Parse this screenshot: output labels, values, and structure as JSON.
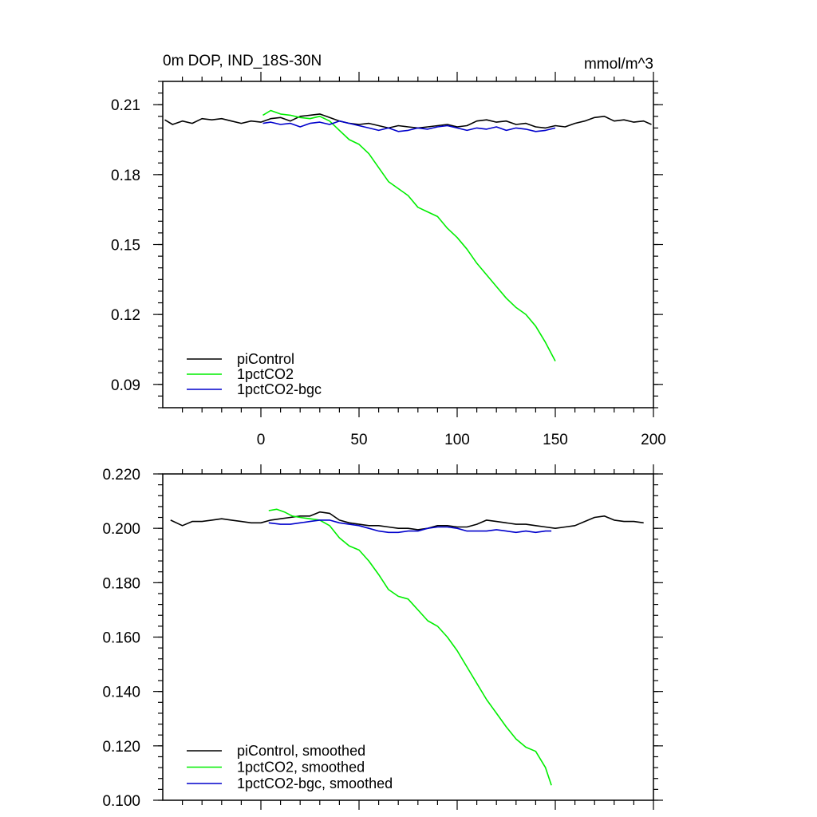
{
  "chart_data": [
    {
      "type": "line",
      "title": "0m DOP, IND_18S-30N",
      "units": "mmol/m^3",
      "xlim": [
        -50,
        200
      ],
      "ylim": [
        0.08,
        0.22
      ],
      "x_ticks": [
        "0",
        "50",
        "100",
        "150",
        "200"
      ],
      "y_ticks": [
        "0.09",
        "0.12",
        "0.15",
        "0.18",
        "0.21"
      ],
      "legend_position": "bottom-left",
      "series": [
        {
          "name": "piControl",
          "color": "#000000",
          "x": [
            -49,
            -45,
            -40,
            -35,
            -30,
            -25,
            -20,
            -15,
            -10,
            -5,
            0,
            5,
            10,
            15,
            20,
            25,
            30,
            35,
            40,
            45,
            50,
            55,
            60,
            65,
            70,
            75,
            80,
            85,
            90,
            95,
            100,
            105,
            110,
            115,
            120,
            125,
            130,
            135,
            140,
            145,
            150,
            155,
            160,
            165,
            170,
            175,
            180,
            185,
            190,
            195,
            199
          ],
          "y": [
            0.2035,
            0.2015,
            0.203,
            0.202,
            0.204,
            0.2035,
            0.204,
            0.203,
            0.202,
            0.203,
            0.2025,
            0.204,
            0.2045,
            0.203,
            0.205,
            0.2055,
            0.206,
            0.2045,
            0.203,
            0.202,
            0.2015,
            0.202,
            0.201,
            0.2,
            0.201,
            0.2005,
            0.2,
            0.2005,
            0.201,
            0.2015,
            0.2005,
            0.201,
            0.203,
            0.2035,
            0.2025,
            0.203,
            0.2015,
            0.202,
            0.2005,
            0.2,
            0.201,
            0.2005,
            0.202,
            0.203,
            0.2045,
            0.205,
            0.203,
            0.2035,
            0.2025,
            0.203,
            0.2015
          ]
        },
        {
          "name": "1pctCO2",
          "color": "#00ee00",
          "x": [
            1,
            5,
            10,
            15,
            20,
            25,
            30,
            35,
            40,
            45,
            50,
            55,
            60,
            65,
            70,
            75,
            80,
            85,
            90,
            95,
            100,
            105,
            110,
            115,
            120,
            125,
            130,
            135,
            140,
            145,
            150
          ],
          "y": [
            0.2055,
            0.2075,
            0.206,
            0.2055,
            0.2045,
            0.204,
            0.205,
            0.203,
            0.199,
            0.195,
            0.193,
            0.189,
            0.183,
            0.177,
            0.174,
            0.171,
            0.166,
            0.164,
            0.162,
            0.157,
            0.153,
            0.148,
            0.142,
            0.137,
            0.132,
            0.127,
            0.123,
            0.12,
            0.115,
            0.108,
            0.1
          ]
        },
        {
          "name": "1pctCO2-bgc",
          "color": "#0000cc",
          "x": [
            1,
            5,
            10,
            15,
            20,
            25,
            30,
            35,
            40,
            45,
            50,
            55,
            60,
            65,
            70,
            75,
            80,
            85,
            90,
            95,
            100,
            105,
            110,
            115,
            120,
            125,
            130,
            135,
            140,
            145,
            150
          ],
          "y": [
            0.202,
            0.2025,
            0.2015,
            0.202,
            0.2005,
            0.202,
            0.2025,
            0.2015,
            0.203,
            0.202,
            0.201,
            0.2,
            0.199,
            0.2,
            0.1985,
            0.199,
            0.2,
            0.1995,
            0.2005,
            0.201,
            0.2,
            0.199,
            0.2,
            0.1995,
            0.2005,
            0.199,
            0.2,
            0.1995,
            0.1985,
            0.199,
            0.2
          ]
        }
      ]
    },
    {
      "type": "line",
      "xlim": [
        -50,
        200
      ],
      "ylim": [
        0.1,
        0.22
      ],
      "y_ticks": [
        "0.100",
        "0.120",
        "0.140",
        "0.160",
        "0.180",
        "0.200",
        "0.220"
      ],
      "legend_position": "bottom-left",
      "series": [
        {
          "name": "piControl, smoothed",
          "color": "#000000",
          "x": [
            -46,
            -40,
            -35,
            -30,
            -25,
            -20,
            -15,
            -10,
            -5,
            0,
            5,
            10,
            15,
            20,
            25,
            30,
            35,
            40,
            45,
            50,
            55,
            60,
            65,
            70,
            75,
            80,
            85,
            90,
            95,
            100,
            105,
            110,
            115,
            120,
            125,
            130,
            135,
            140,
            145,
            150,
            155,
            160,
            165,
            170,
            175,
            180,
            185,
            190,
            195
          ],
          "y": [
            0.203,
            0.201,
            0.2025,
            0.2025,
            0.203,
            0.2035,
            0.203,
            0.2025,
            0.202,
            0.202,
            0.203,
            0.2035,
            0.204,
            0.2045,
            0.2045,
            0.206,
            0.2055,
            0.203,
            0.202,
            0.2015,
            0.201,
            0.201,
            0.2005,
            0.2,
            0.2,
            0.1995,
            0.2,
            0.201,
            0.201,
            0.2005,
            0.2005,
            0.2015,
            0.203,
            0.2025,
            0.202,
            0.2015,
            0.2015,
            0.201,
            0.2005,
            0.2,
            0.2005,
            0.201,
            0.2025,
            0.204,
            0.2045,
            0.203,
            0.2025,
            0.2025,
            0.202
          ]
        },
        {
          "name": "1pctCO2, smoothed",
          "color": "#00ee00",
          "x": [
            4,
            8,
            12,
            16,
            20,
            25,
            30,
            35,
            40,
            45,
            50,
            55,
            60,
            65,
            70,
            75,
            80,
            85,
            90,
            95,
            100,
            105,
            110,
            115,
            120,
            125,
            130,
            135,
            140,
            145,
            148
          ],
          "y": [
            0.2065,
            0.207,
            0.206,
            0.2045,
            0.204,
            0.2035,
            0.203,
            0.201,
            0.1965,
            0.1935,
            0.192,
            0.188,
            0.183,
            0.1775,
            0.175,
            0.174,
            0.17,
            0.166,
            0.164,
            0.16,
            0.155,
            0.149,
            0.143,
            0.137,
            0.132,
            0.127,
            0.1225,
            0.1195,
            0.118,
            0.112,
            0.1055
          ]
        },
        {
          "name": "1pctCO2-bgc, smoothed",
          "color": "#0000cc",
          "x": [
            4,
            10,
            15,
            20,
            25,
            30,
            35,
            40,
            45,
            50,
            55,
            60,
            65,
            70,
            75,
            80,
            85,
            90,
            95,
            100,
            105,
            110,
            115,
            120,
            125,
            130,
            135,
            140,
            145,
            148
          ],
          "y": [
            0.202,
            0.2015,
            0.2015,
            0.202,
            0.2025,
            0.203,
            0.203,
            0.202,
            0.2015,
            0.201,
            0.2,
            0.199,
            0.1985,
            0.1985,
            0.199,
            0.199,
            0.2,
            0.2005,
            0.2005,
            0.2,
            0.199,
            0.199,
            0.199,
            0.1995,
            0.199,
            0.1985,
            0.199,
            0.1985,
            0.199,
            0.199
          ]
        }
      ]
    }
  ]
}
